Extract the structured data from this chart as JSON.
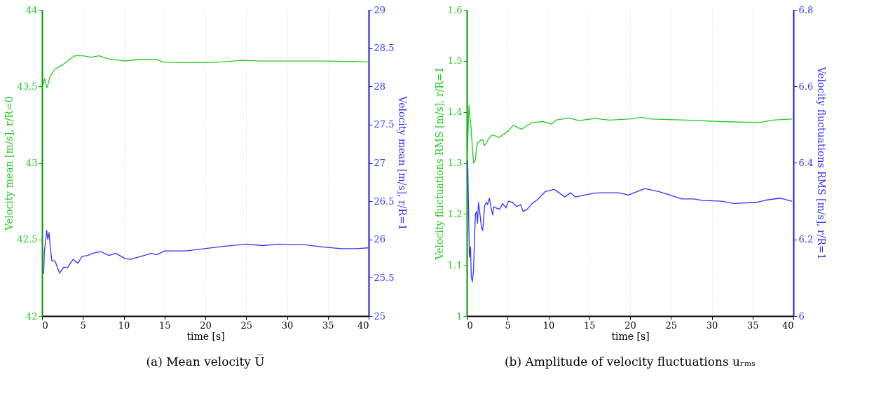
{
  "chart_data": [
    {
      "type": "line",
      "title": "(a) Mean velocity U̅",
      "xlabel": "time [s]",
      "ylabel": "Velocity mean [m/s], r/R=0",
      "y2label": "Velocity mean [m/s], r/R=1",
      "xlim": [
        0,
        40
      ],
      "xticks": [
        0,
        5,
        10,
        15,
        20,
        25,
        30,
        35,
        40
      ],
      "ylim": [
        42,
        44
      ],
      "yticks": [
        42,
        42.5,
        43,
        43.5,
        44
      ],
      "y2lim": [
        25,
        29
      ],
      "y2ticks": [
        25,
        25.5,
        26,
        26.5,
        27,
        27.5,
        28,
        28.5,
        29
      ],
      "grid": "x",
      "line_style": "solid",
      "series": [
        {
          "color": "#22cc22",
          "x": [
            0.05,
            0.3,
            0.6,
            1,
            1.5,
            2.5,
            3.5,
            4,
            5,
            6,
            7,
            8,
            10,
            12,
            14,
            15,
            18,
            20,
            22,
            24.5,
            27,
            30,
            35,
            40
          ],
          "values": [
            43.49,
            43.55,
            43.49,
            43.565,
            43.61,
            43.64,
            43.68,
            43.7,
            43.7,
            43.69,
            43.7,
            43.68,
            43.666,
            43.675,
            43.675,
            43.657,
            43.655,
            43.655,
            43.66,
            43.67,
            43.665,
            43.665,
            43.665,
            43.66
          ]
        },
        {
          "color": "#3333ff",
          "axis": "y2",
          "x": [
            0.2,
            0.28,
            0.43,
            0.57,
            0.71,
            0.86,
            1,
            1.2,
            1.59,
            1.9,
            2.15,
            2.6,
            2.7,
            3.1,
            3.8,
            4.4,
            4.9,
            5.6,
            6.2,
            7.2,
            8.2,
            9,
            10.2,
            10.8,
            12.5,
            13.4,
            14,
            15,
            17.6,
            19.9,
            22.2,
            25,
            27,
            29,
            32.2,
            34.5,
            36.7,
            38.5,
            39.9
          ],
          "values": [
            25.56,
            25.84,
            25.97,
            26.12,
            26,
            26.09,
            25.91,
            25.72,
            25.72,
            25.63,
            25.56,
            25.63,
            25.64,
            25.63,
            25.74,
            25.69,
            25.78,
            25.79,
            25.82,
            25.84,
            25.79,
            25.82,
            25.75,
            25.74,
            25.79,
            25.82,
            25.8,
            25.85,
            25.85,
            25.88,
            25.91,
            25.94,
            25.92,
            25.94,
            25.93,
            25.9,
            25.88,
            25.88,
            25.89
          ]
        }
      ]
    },
    {
      "type": "line",
      "title": "(b) Amplitude of velocity fluctuations uᵣₘₛ",
      "xlabel": "time [s]",
      "ylabel": "Velocity fluctuations RMS [m/s], r/R=1",
      "y2label": "Velocity fluctuations RMS [m/s], r/R=1",
      "xlim": [
        0,
        40
      ],
      "xticks": [
        0,
        5,
        10,
        15,
        20,
        25,
        30,
        35,
        40
      ],
      "ylim": [
        1,
        1.6
      ],
      "yticks": [
        1,
        1.1,
        1.2,
        1.3,
        1.4,
        1.5,
        1.6
      ],
      "y2lim": [
        6,
        6.8
      ],
      "y2ticks": [
        6,
        6.2,
        6.4,
        6.6,
        6.8
      ],
      "grid": "x",
      "line_style": "solid",
      "series": [
        {
          "color": "#22cc22",
          "x": [
            0.02,
            0.26,
            0.4,
            0.55,
            0.69,
            0.83,
            1.06,
            1.18,
            1.32,
            1.69,
            1.98,
            2.12,
            2.41,
            2.7,
            3.1,
            4,
            5.1,
            5.7,
            6.7,
            8,
            9.4,
            10.4,
            10.9,
            12.6,
            13.7,
            15.7,
            17.5,
            19.8,
            21.5,
            22.6,
            26.9,
            31.2,
            35.8,
            37.5,
            39.8
          ],
          "values": [
            1.289,
            1.413,
            1.39,
            1.365,
            1.328,
            1.3,
            1.306,
            1.329,
            1.339,
            1.344,
            1.345,
            1.334,
            1.339,
            1.348,
            1.355,
            1.35,
            1.363,
            1.374,
            1.366,
            1.379,
            1.381,
            1.376,
            1.384,
            1.388,
            1.383,
            1.387,
            1.384,
            1.386,
            1.389,
            1.386,
            1.384,
            1.381,
            1.379,
            1.384,
            1.386
          ]
        },
        {
          "color": "#3333ff",
          "axis": "y2",
          "x": [
            0.11,
            0.32,
            0.46,
            0.55,
            0.69,
            0.83,
            0.92,
            1.06,
            1.2,
            1.32,
            1.43,
            1.58,
            1.69,
            1.81,
            1.95,
            2.07,
            2.18,
            2.41,
            2.55,
            2.78,
            2.98,
            3.18,
            3.27,
            4,
            4.4,
            4.79,
            5.1,
            5.6,
            6.1,
            6.6,
            6.9,
            7.4,
            8,
            8.6,
            9.6,
            10.2,
            10.7,
            11.3,
            12,
            12.7,
            13.3,
            14.4,
            15.7,
            16.3,
            18.6,
            19.8,
            21.8,
            23.5,
            24.9,
            26.3,
            27.8,
            28.9,
            31.2,
            32.7,
            35.5,
            36.7,
            38.4,
            39.8
          ],
          "values": [
            6.407,
            6.154,
            6.181,
            6.102,
            6.09,
            6.12,
            6.184,
            6.267,
            6.273,
            6.242,
            6.297,
            6.273,
            6.251,
            6.23,
            6.224,
            6.254,
            6.288,
            6.297,
            6.291,
            6.308,
            6.282,
            6.264,
            6.285,
            6.279,
            6.294,
            6.282,
            6.3,
            6.297,
            6.286,
            6.291,
            6.273,
            6.279,
            6.294,
            6.303,
            6.325,
            6.328,
            6.331,
            6.322,
            6.311,
            6.322,
            6.311,
            6.316,
            6.321,
            6.322,
            6.322,
            6.316,
            6.333,
            6.325,
            6.316,
            6.306,
            6.306,
            6.302,
            6.3,
            6.294,
            6.297,
            6.303,
            6.308,
            6.3
          ]
        }
      ]
    }
  ]
}
